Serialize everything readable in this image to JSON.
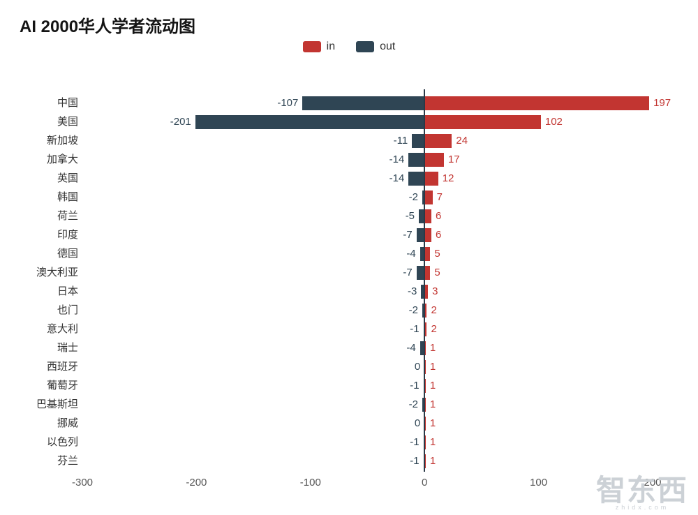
{
  "title": "AI 2000华人学者流动图",
  "legend": {
    "items": [
      {
        "label": "in",
        "color": "#c23531"
      },
      {
        "label": "out",
        "color": "#2f4554"
      }
    ]
  },
  "watermark": {
    "text": "智东西",
    "subtext": "zhidx.com"
  },
  "chart_data": {
    "type": "bar",
    "orientation": "horizontal-diverging",
    "title": "AI 2000华人学者流动图",
    "legend_position": "top-center",
    "grid": false,
    "xlim": [
      -300,
      200
    ],
    "x_ticks": [
      -300,
      -200,
      -100,
      0,
      100,
      200
    ],
    "categories": [
      "中国",
      "美国",
      "新加坡",
      "加拿大",
      "英国",
      "韩国",
      "荷兰",
      "印度",
      "德国",
      "澳大利亚",
      "日本",
      "也门",
      "意大利",
      "瑞士",
      "西班牙",
      "葡萄牙",
      "巴基斯坦",
      "挪威",
      "以色列",
      "芬兰"
    ],
    "series": [
      {
        "name": "in",
        "color": "#c23531",
        "values": [
          197,
          102,
          24,
          17,
          12,
          7,
          6,
          6,
          5,
          5,
          3,
          2,
          2,
          1,
          1,
          1,
          1,
          1,
          1,
          1
        ]
      },
      {
        "name": "out",
        "color": "#2f4554",
        "values": [
          -107,
          -201,
          -11,
          -14,
          -14,
          -2,
          -5,
          -7,
          -4,
          -7,
          -3,
          -2,
          -1,
          -4,
          0,
          -1,
          -2,
          0,
          -1,
          -1
        ]
      }
    ],
    "value_label_colors": {
      "in": "#c23531",
      "out": "#2f4554"
    },
    "category_label_color": "#333333",
    "axis_label_color": "#555555"
  }
}
